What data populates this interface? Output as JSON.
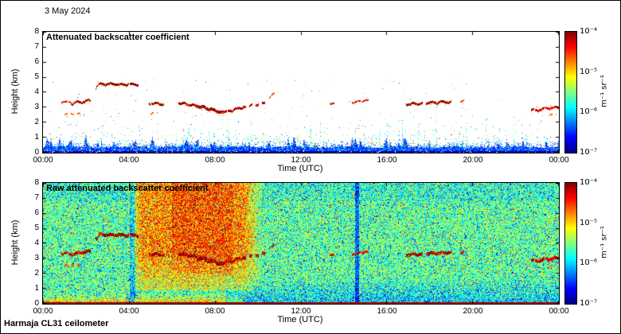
{
  "page": {
    "date_label": "3 May 2024",
    "footer_label": "Harmaja CL31 ceilometer",
    "background": "#ffffff",
    "frame_color": "#000000"
  },
  "axes": {
    "xlabel": "Time (UTC)",
    "ylabel": "Height (km)",
    "x_ticks": [
      "00:00",
      "04:00",
      "08:00",
      "12:00",
      "16:00",
      "20:00",
      "00:00"
    ],
    "x_tick_hours": [
      0,
      4,
      8,
      12,
      16,
      20,
      24
    ],
    "y_ticks": [
      0,
      1,
      2,
      3,
      4,
      5,
      6,
      7,
      8
    ]
  },
  "colorbar": {
    "ticks": [
      "10⁻⁴",
      "10⁻⁵",
      "10⁻⁶",
      "10⁻⁷"
    ],
    "label": "m⁻¹ sr⁻¹",
    "scale": "log",
    "range_min": "1e-7",
    "range_max": "1e-4",
    "colormap": "jet"
  },
  "chart_data": [
    {
      "type": "heatmap",
      "title": "Attenuated backscatter coefficient",
      "xlabel": "Time (UTC)",
      "ylabel": "Height (km)",
      "x_range_hours": [
        0,
        24
      ],
      "y_range_km": [
        0,
        8
      ],
      "units": "m⁻¹ sr⁻¹",
      "background": "white below detection threshold",
      "features": {
        "aerosol_layer": {
          "t0": 0,
          "t1": 24,
          "top_km": 0.35,
          "color_range_low": "dark blue",
          "color_range_high": "cyan"
        },
        "cloud_segments": [
          {
            "t0": 0.85,
            "t1": 1.25,
            "h0": 3.35,
            "h1": 3.3,
            "w": 2,
            "v": 0.93,
            "broken": false
          },
          {
            "t0": 1.3,
            "t1": 2.2,
            "h0": 3.25,
            "h1": 3.45,
            "w": 3,
            "v": 0.97,
            "broken": false
          },
          {
            "t0": 1.0,
            "t1": 1.9,
            "h0": 2.55,
            "h1": 2.5,
            "w": 2,
            "v": 0.78,
            "broken": true
          },
          {
            "t0": 2.45,
            "t1": 2.6,
            "h0": 4.3,
            "h1": 4.5,
            "w": 2,
            "v": 0.95,
            "broken": false
          },
          {
            "t0": 2.6,
            "t1": 4.4,
            "h0": 4.55,
            "h1": 4.5,
            "w": 3,
            "v": 1.0,
            "broken": false
          },
          {
            "t0": 4.95,
            "t1": 5.6,
            "h0": 3.25,
            "h1": 3.2,
            "w": 3,
            "v": 0.98,
            "broken": false
          },
          {
            "t0": 5.0,
            "t1": 5.3,
            "h0": 2.55,
            "h1": 2.6,
            "w": 2,
            "v": 0.78,
            "broken": true
          },
          {
            "t0": 6.3,
            "t1": 7.1,
            "h0": 3.3,
            "h1": 3.1,
            "w": 3,
            "v": 0.98,
            "broken": false
          },
          {
            "t0": 7.1,
            "t1": 8.4,
            "h0": 3.1,
            "h1": 2.6,
            "w": 4,
            "v": 0.99,
            "broken": false
          },
          {
            "t0": 8.4,
            "t1": 9.3,
            "h0": 2.65,
            "h1": 3.0,
            "w": 3,
            "v": 0.97,
            "broken": false
          },
          {
            "t0": 9.3,
            "t1": 10.3,
            "h0": 3.0,
            "h1": 3.3,
            "w": 3,
            "v": 0.95,
            "broken": true
          },
          {
            "t0": 10.55,
            "t1": 10.75,
            "h0": 3.6,
            "h1": 3.9,
            "w": 2,
            "v": 0.9,
            "broken": false
          },
          {
            "t0": 13.35,
            "t1": 13.55,
            "h0": 3.25,
            "h1": 3.25,
            "w": 2,
            "v": 0.92,
            "broken": false
          },
          {
            "t0": 14.4,
            "t1": 14.75,
            "h0": 3.3,
            "h1": 3.35,
            "w": 2,
            "v": 0.95,
            "broken": false
          },
          {
            "t0": 14.85,
            "t1": 15.15,
            "h0": 3.4,
            "h1": 3.4,
            "w": 2,
            "v": 0.9,
            "broken": false
          },
          {
            "t0": 16.9,
            "t1": 17.65,
            "h0": 3.2,
            "h1": 3.25,
            "w": 3,
            "v": 0.98,
            "broken": false
          },
          {
            "t0": 17.85,
            "t1": 19.0,
            "h0": 3.3,
            "h1": 3.35,
            "w": 3,
            "v": 0.98,
            "broken": false
          },
          {
            "t0": 19.45,
            "t1": 19.6,
            "h0": 3.4,
            "h1": 3.4,
            "w": 2,
            "v": 0.9,
            "broken": false
          },
          {
            "t0": 22.75,
            "t1": 23.3,
            "h0": 2.8,
            "h1": 2.85,
            "w": 3,
            "v": 0.95,
            "broken": false
          },
          {
            "t0": 23.35,
            "t1": 24.0,
            "h0": 2.9,
            "h1": 3.0,
            "w": 3,
            "v": 0.9,
            "broken": false
          },
          {
            "t0": 23.6,
            "t1": 23.9,
            "h0": 2.5,
            "h1": 2.45,
            "w": 2,
            "v": 0.75,
            "broken": true
          }
        ]
      }
    },
    {
      "type": "heatmap",
      "title": "Raw attenuated backscatter coefficient",
      "xlabel": "Time (UTC)",
      "ylabel": "Height (km)",
      "x_range_hours": [
        0,
        24
      ],
      "y_range_km": [
        0,
        8
      ],
      "units": "m⁻¹ sr⁻¹",
      "background": "full-field speckle noise (jet colormap)",
      "features": {
        "surface_line": {
          "below_km": 0.1
        },
        "near": {
          "t0": 0,
          "t1": 9.3,
          "top_km": 0.6,
          "boost": 0.2
        },
        "enhanced_region": {
          "t0": 3.9,
          "t1": 10.2,
          "above_km": 0.9,
          "boost_base": 0.12,
          "boost_height": 0.16
        },
        "core_region": {
          "t0": 6.0,
          "t1": 8.8,
          "above_km": 2.0,
          "boost": 0.06
        },
        "low_blue_region": {
          "t0": 8.5,
          "t1": 24,
          "below_km": 1.7,
          "reduce": 0.13
        },
        "clean_stripes": [
          {
            "t": 4.15,
            "width_h": 0.28,
            "dv": -0.18
          },
          {
            "t": 14.6,
            "width_h": 0.18,
            "dv": -0.24
          }
        ],
        "noise_amplitude": 0.34,
        "cloud_segments": "same as attenuated panel"
      }
    }
  ],
  "render": {
    "seed_top": 42,
    "seed_raw": 7,
    "dot_count": 1100,
    "streak_count": 32,
    "spike_count": 55
  }
}
